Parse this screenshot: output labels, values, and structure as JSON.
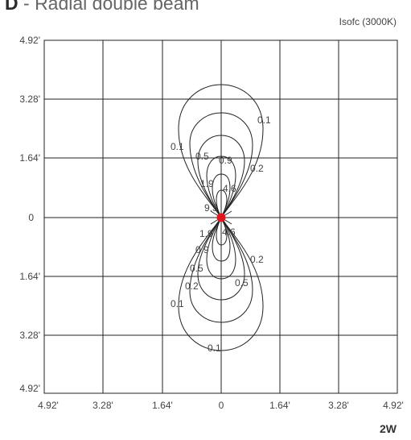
{
  "header": {
    "title_letter": "D",
    "title_text": "- Radial double beam"
  },
  "legend": {
    "text": "Isofc (3000K)"
  },
  "footer": {
    "power": "2W"
  },
  "chart_data": {
    "type": "isolux contour",
    "x_ticks": [
      "4.92'",
      "3.28'",
      "1.64'",
      "0",
      "1.64'",
      "3.28'",
      "4.92'"
    ],
    "y_ticks": [
      "4.92'",
      "3.28'",
      "1.64'",
      "0",
      "1.64'",
      "3.28'",
      "4.92'"
    ],
    "grid": true,
    "contour_levels": [
      "0.1",
      "0.2",
      "0.5",
      "0.9",
      "1.9",
      "4.6",
      "9.3"
    ],
    "source_color": "#e0161e"
  }
}
